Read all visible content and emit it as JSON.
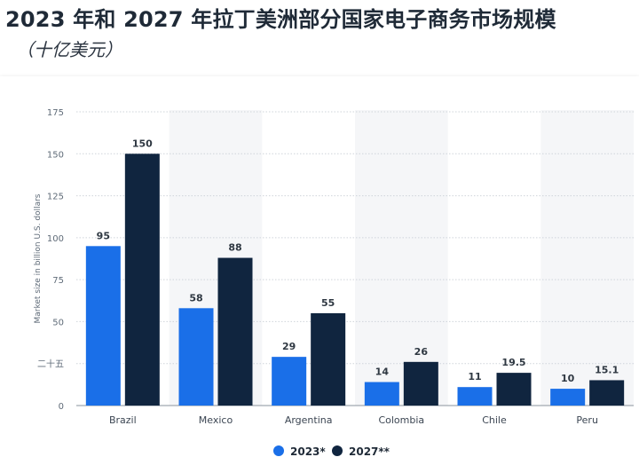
{
  "title": "2023 年和 2027 年拉丁美洲部分国家电子商务市场规模",
  "subtitle": "（十亿美元）",
  "colors": {
    "s2023": "#1a6fe8",
    "s2027": "#10253f",
    "band": "#f5f6f8",
    "grid": "#cfd4da"
  },
  "chart_data": {
    "type": "bar",
    "categories": [
      "Brazil",
      "Mexico",
      "Argentina",
      "Colombia",
      "Chile",
      "Peru"
    ],
    "series": [
      {
        "name": "2023*",
        "values": [
          95,
          58,
          29,
          14,
          11,
          10
        ],
        "labels": [
          "95",
          "58",
          "29",
          "14",
          "11",
          "10"
        ]
      },
      {
        "name": "2027**",
        "values": [
          150,
          88,
          55,
          26,
          19.5,
          15.1
        ],
        "labels": [
          "150",
          "88",
          "55",
          "26",
          "19.5",
          "15.1"
        ]
      }
    ],
    "ylabel": "Market size in billion U.S. dollars",
    "ylim": [
      0,
      175
    ],
    "yticks": [
      0,
      25,
      50,
      75,
      100,
      125,
      150,
      175
    ],
    "ytick_labels": [
      "0",
      "二十五",
      "50",
      "75",
      "100",
      "125",
      "150",
      "175"
    ],
    "grid": true,
    "legend_position": "bottom"
  }
}
